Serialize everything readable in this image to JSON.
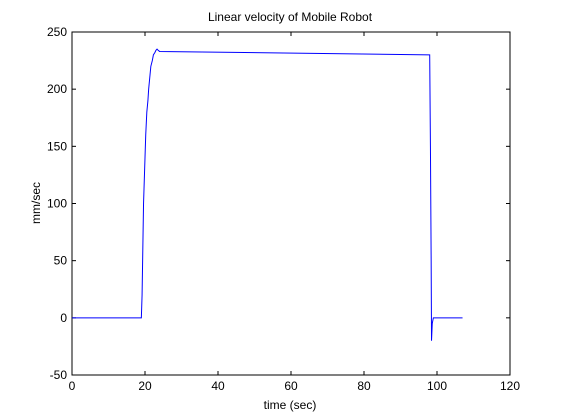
{
  "chart_data": {
    "type": "line",
    "title": "Linear velocity of Mobile Robot",
    "xlabel": "time (sec)",
    "ylabel": "mm/sec",
    "xlim": [
      0,
      120
    ],
    "ylim": [
      -50,
      250
    ],
    "xticks": [
      0,
      20,
      40,
      60,
      80,
      100,
      120
    ],
    "yticks": [
      -50,
      0,
      50,
      100,
      150,
      200,
      250
    ],
    "grid": false,
    "series_color": "#0000ff",
    "series": [
      {
        "x": [
          0,
          19.0,
          19.2,
          19.4,
          19.6,
          19.8,
          20.0,
          20.2,
          20.5,
          20.8,
          21.0,
          21.3,
          21.6,
          22.0,
          22.3,
          22.7,
          23.0,
          23.3,
          23.6,
          24.0,
          98.0,
          98.2,
          98.4,
          98.5,
          98.7,
          99.0,
          107.0
        ],
        "y": [
          0,
          0,
          20,
          60,
          100,
          120,
          140,
          160,
          180,
          190,
          200,
          210,
          220,
          225,
          230,
          232,
          234,
          235,
          234,
          233,
          230,
          150,
          50,
          -20,
          -5,
          0,
          0
        ]
      }
    ]
  }
}
